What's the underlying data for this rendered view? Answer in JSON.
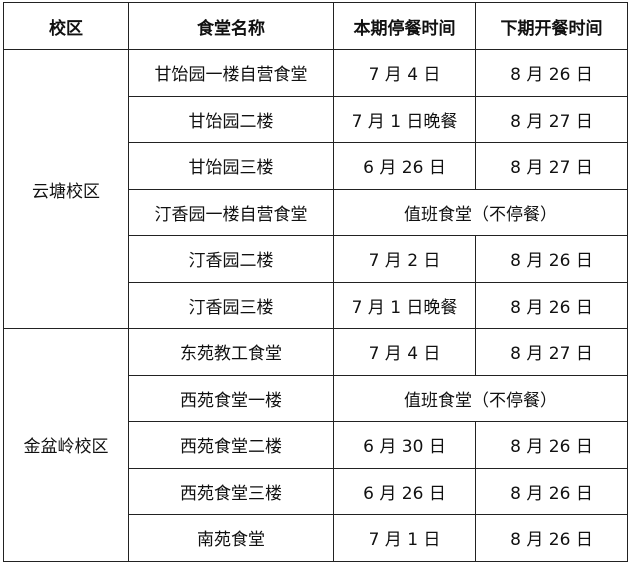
{
  "headers": [
    "校区",
    "食堂名称",
    "本期停餐时间",
    "下期开餐时间"
  ],
  "groups": [
    {
      "campus": "云塘校区",
      "rows": [
        {
          "name": "甘饴园一楼自营食堂",
          "stop": "7 月 4 日",
          "start": "8 月 26 日"
        },
        {
          "name": "甘饴园二楼",
          "stop": "7 月 1 日晚餐",
          "start": "8 月 27 日"
        },
        {
          "name": "甘饴园三楼",
          "stop": "6 月 26 日",
          "start": "8 月 27 日"
        },
        {
          "name": "汀香园一楼自营食堂",
          "merged": "值班食堂（不停餐）"
        },
        {
          "name": "汀香园二楼",
          "stop": "7 月 2 日",
          "start": "8 月 26 日"
        },
        {
          "name": "汀香园三楼",
          "stop": "7 月 1 日晚餐",
          "start": "8 月 26 日"
        }
      ]
    },
    {
      "campus": "金盆岭校区",
      "rows": [
        {
          "name": "东苑教工食堂",
          "stop": "7 月 4 日",
          "start": "8 月 27 日"
        },
        {
          "name": "西苑食堂一楼",
          "merged": "值班食堂（不停餐）"
        },
        {
          "name": "西苑食堂二楼",
          "stop": "6 月 30 日",
          "start": "8 月 26 日"
        },
        {
          "name": "西苑食堂三楼",
          "stop": "6 月 26 日",
          "start": "8 月 26 日"
        },
        {
          "name": "南苑食堂",
          "stop": "7 月 1 日",
          "start": "8 月 26 日"
        }
      ]
    }
  ]
}
